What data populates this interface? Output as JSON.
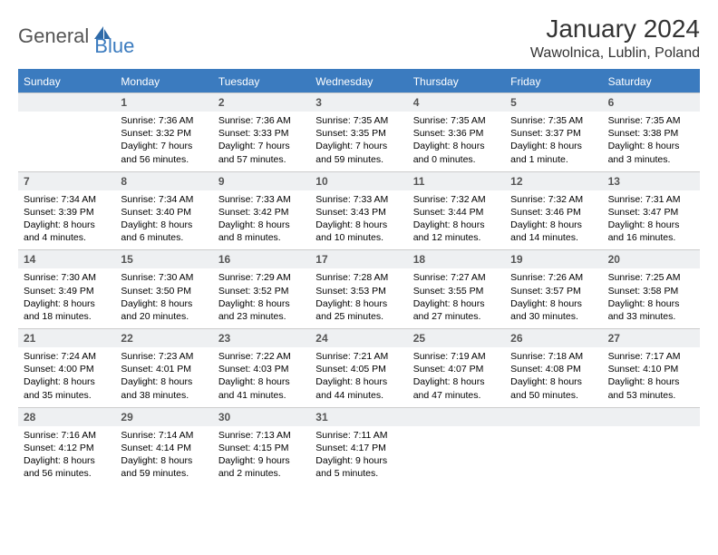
{
  "logo": {
    "part1": "General",
    "part2": "Blue"
  },
  "title": "January 2024",
  "location": "Wawolnica, Lublin, Poland",
  "colors": {
    "header_bg": "#3b7bbf",
    "header_text": "#ffffff",
    "daynum_bg": "#eef0f2",
    "daynum_text": "#555555",
    "body_text": "#000000",
    "border": "#cccccc",
    "logo_gray": "#555555",
    "logo_blue": "#3b7bbf"
  },
  "day_headers": [
    "Sunday",
    "Monday",
    "Tuesday",
    "Wednesday",
    "Thursday",
    "Friday",
    "Saturday"
  ],
  "weeks": [
    [
      null,
      {
        "n": "1",
        "sunrise": "Sunrise: 7:36 AM",
        "sunset": "Sunset: 3:32 PM",
        "daylight": "Daylight: 7 hours and 56 minutes."
      },
      {
        "n": "2",
        "sunrise": "Sunrise: 7:36 AM",
        "sunset": "Sunset: 3:33 PM",
        "daylight": "Daylight: 7 hours and 57 minutes."
      },
      {
        "n": "3",
        "sunrise": "Sunrise: 7:35 AM",
        "sunset": "Sunset: 3:35 PM",
        "daylight": "Daylight: 7 hours and 59 minutes."
      },
      {
        "n": "4",
        "sunrise": "Sunrise: 7:35 AM",
        "sunset": "Sunset: 3:36 PM",
        "daylight": "Daylight: 8 hours and 0 minutes."
      },
      {
        "n": "5",
        "sunrise": "Sunrise: 7:35 AM",
        "sunset": "Sunset: 3:37 PM",
        "daylight": "Daylight: 8 hours and 1 minute."
      },
      {
        "n": "6",
        "sunrise": "Sunrise: 7:35 AM",
        "sunset": "Sunset: 3:38 PM",
        "daylight": "Daylight: 8 hours and 3 minutes."
      }
    ],
    [
      {
        "n": "7",
        "sunrise": "Sunrise: 7:34 AM",
        "sunset": "Sunset: 3:39 PM",
        "daylight": "Daylight: 8 hours and 4 minutes."
      },
      {
        "n": "8",
        "sunrise": "Sunrise: 7:34 AM",
        "sunset": "Sunset: 3:40 PM",
        "daylight": "Daylight: 8 hours and 6 minutes."
      },
      {
        "n": "9",
        "sunrise": "Sunrise: 7:33 AM",
        "sunset": "Sunset: 3:42 PM",
        "daylight": "Daylight: 8 hours and 8 minutes."
      },
      {
        "n": "10",
        "sunrise": "Sunrise: 7:33 AM",
        "sunset": "Sunset: 3:43 PM",
        "daylight": "Daylight: 8 hours and 10 minutes."
      },
      {
        "n": "11",
        "sunrise": "Sunrise: 7:32 AM",
        "sunset": "Sunset: 3:44 PM",
        "daylight": "Daylight: 8 hours and 12 minutes."
      },
      {
        "n": "12",
        "sunrise": "Sunrise: 7:32 AM",
        "sunset": "Sunset: 3:46 PM",
        "daylight": "Daylight: 8 hours and 14 minutes."
      },
      {
        "n": "13",
        "sunrise": "Sunrise: 7:31 AM",
        "sunset": "Sunset: 3:47 PM",
        "daylight": "Daylight: 8 hours and 16 minutes."
      }
    ],
    [
      {
        "n": "14",
        "sunrise": "Sunrise: 7:30 AM",
        "sunset": "Sunset: 3:49 PM",
        "daylight": "Daylight: 8 hours and 18 minutes."
      },
      {
        "n": "15",
        "sunrise": "Sunrise: 7:30 AM",
        "sunset": "Sunset: 3:50 PM",
        "daylight": "Daylight: 8 hours and 20 minutes."
      },
      {
        "n": "16",
        "sunrise": "Sunrise: 7:29 AM",
        "sunset": "Sunset: 3:52 PM",
        "daylight": "Daylight: 8 hours and 23 minutes."
      },
      {
        "n": "17",
        "sunrise": "Sunrise: 7:28 AM",
        "sunset": "Sunset: 3:53 PM",
        "daylight": "Daylight: 8 hours and 25 minutes."
      },
      {
        "n": "18",
        "sunrise": "Sunrise: 7:27 AM",
        "sunset": "Sunset: 3:55 PM",
        "daylight": "Daylight: 8 hours and 27 minutes."
      },
      {
        "n": "19",
        "sunrise": "Sunrise: 7:26 AM",
        "sunset": "Sunset: 3:57 PM",
        "daylight": "Daylight: 8 hours and 30 minutes."
      },
      {
        "n": "20",
        "sunrise": "Sunrise: 7:25 AM",
        "sunset": "Sunset: 3:58 PM",
        "daylight": "Daylight: 8 hours and 33 minutes."
      }
    ],
    [
      {
        "n": "21",
        "sunrise": "Sunrise: 7:24 AM",
        "sunset": "Sunset: 4:00 PM",
        "daylight": "Daylight: 8 hours and 35 minutes."
      },
      {
        "n": "22",
        "sunrise": "Sunrise: 7:23 AM",
        "sunset": "Sunset: 4:01 PM",
        "daylight": "Daylight: 8 hours and 38 minutes."
      },
      {
        "n": "23",
        "sunrise": "Sunrise: 7:22 AM",
        "sunset": "Sunset: 4:03 PM",
        "daylight": "Daylight: 8 hours and 41 minutes."
      },
      {
        "n": "24",
        "sunrise": "Sunrise: 7:21 AM",
        "sunset": "Sunset: 4:05 PM",
        "daylight": "Daylight: 8 hours and 44 minutes."
      },
      {
        "n": "25",
        "sunrise": "Sunrise: 7:19 AM",
        "sunset": "Sunset: 4:07 PM",
        "daylight": "Daylight: 8 hours and 47 minutes."
      },
      {
        "n": "26",
        "sunrise": "Sunrise: 7:18 AM",
        "sunset": "Sunset: 4:08 PM",
        "daylight": "Daylight: 8 hours and 50 minutes."
      },
      {
        "n": "27",
        "sunrise": "Sunrise: 7:17 AM",
        "sunset": "Sunset: 4:10 PM",
        "daylight": "Daylight: 8 hours and 53 minutes."
      }
    ],
    [
      {
        "n": "28",
        "sunrise": "Sunrise: 7:16 AM",
        "sunset": "Sunset: 4:12 PM",
        "daylight": "Daylight: 8 hours and 56 minutes."
      },
      {
        "n": "29",
        "sunrise": "Sunrise: 7:14 AM",
        "sunset": "Sunset: 4:14 PM",
        "daylight": "Daylight: 8 hours and 59 minutes."
      },
      {
        "n": "30",
        "sunrise": "Sunrise: 7:13 AM",
        "sunset": "Sunset: 4:15 PM",
        "daylight": "Daylight: 9 hours and 2 minutes."
      },
      {
        "n": "31",
        "sunrise": "Sunrise: 7:11 AM",
        "sunset": "Sunset: 4:17 PM",
        "daylight": "Daylight: 9 hours and 5 minutes."
      },
      null,
      null,
      null
    ]
  ]
}
